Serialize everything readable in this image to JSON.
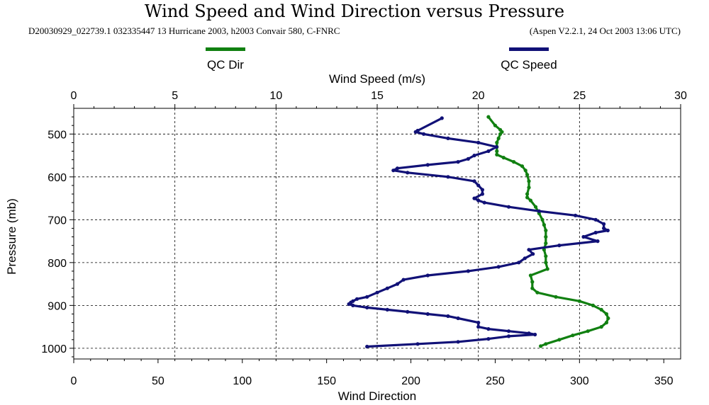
{
  "chart_data": {
    "type": "line",
    "title": "Wind Speed and Wind Direction versus Pressure",
    "subtitle_left": "D20030929_022739.1 032335447 13 Hurricane 2003, h2003 Convair 580, C-FNRC",
    "subtitle_right": "(Aspen V2.2.1, 24 Oct 2003  13:06 UTC)",
    "x_top_label": "Wind Speed (m/s)",
    "x_bottom_label": "Wind Direction",
    "y_label": "Pressure (mb)",
    "x_top_range": [
      0,
      30
    ],
    "x_bottom_range": [
      0,
      360
    ],
    "y_range": [
      440,
      1025
    ],
    "y_inverted": true,
    "x_top_ticks": [
      "0",
      "5",
      "10",
      "15",
      "20",
      "25",
      "30"
    ],
    "x_bottom_ticks": [
      "0",
      "50",
      "100",
      "150",
      "200",
      "250",
      "300",
      "350"
    ],
    "y_ticks": [
      "500",
      "600",
      "700",
      "800",
      "900",
      "1000"
    ],
    "grid": true,
    "legend_placement": "top",
    "series": [
      {
        "name": "QC Dir",
        "axis": "bottom",
        "color": "#118011",
        "pressure": [
          460,
          480,
          490,
          495,
          500,
          510,
          520,
          530,
          540,
          548,
          555,
          565,
          575,
          585,
          595,
          610,
          625,
          640,
          648,
          655,
          670,
          685,
          700,
          712,
          725,
          740,
          755,
          770,
          785,
          800,
          815,
          830,
          845,
          860,
          870,
          880,
          890,
          900,
          910,
          920,
          930,
          940,
          950,
          960,
          970,
          980,
          990,
          995
        ],
        "values": [
          246,
          250,
          253,
          254,
          253,
          252,
          251,
          251,
          251,
          251,
          255,
          261,
          266,
          268,
          269,
          270,
          270,
          269,
          269,
          271,
          274,
          276,
          278,
          279,
          280,
          280,
          280,
          279,
          280,
          280,
          281,
          271,
          272,
          272,
          275,
          286,
          300,
          308,
          313,
          316,
          317,
          316,
          313,
          305,
          296,
          288,
          280,
          277
        ]
      },
      {
        "name": "QC Speed",
        "axis": "top",
        "color": "#111177",
        "pressure": [
          463,
          492,
          495,
          500,
          510,
          520,
          530,
          540,
          550,
          558,
          565,
          572,
          580,
          585,
          590,
          600,
          610,
          620,
          630,
          640,
          650,
          655,
          660,
          670,
          680,
          690,
          700,
          710,
          720,
          725,
          730,
          740,
          750,
          760,
          770,
          780,
          790,
          800,
          810,
          820,
          830,
          840,
          850,
          860,
          870,
          880,
          885,
          890,
          893,
          897,
          900,
          905,
          910,
          915,
          920,
          925,
          930,
          940,
          950,
          955,
          960,
          965,
          968,
          972,
          978,
          985,
          990,
          996
        ],
        "values": [
          18.2,
          17.0,
          16.9,
          17.3,
          18.5,
          20.0,
          20.9,
          20.5,
          19.8,
          19.5,
          19.0,
          17.5,
          16.0,
          15.8,
          16.5,
          18.5,
          19.8,
          20.0,
          20.2,
          20.2,
          19.8,
          20.0,
          20.3,
          21.5,
          23.0,
          24.8,
          25.8,
          26.2,
          26.2,
          26.4,
          25.8,
          25.2,
          25.9,
          24.0,
          22.5,
          22.7,
          22.3,
          22.0,
          21.0,
          19.5,
          17.5,
          16.3,
          16.0,
          15.5,
          15.0,
          14.5,
          14.0,
          13.8,
          13.7,
          13.6,
          13.8,
          14.5,
          15.5,
          16.5,
          17.5,
          18.5,
          19.0,
          20.0,
          20.0,
          20.5,
          21.5,
          22.5,
          22.8,
          21.5,
          20.5,
          19.0,
          17.0,
          14.5
        ]
      }
    ]
  }
}
